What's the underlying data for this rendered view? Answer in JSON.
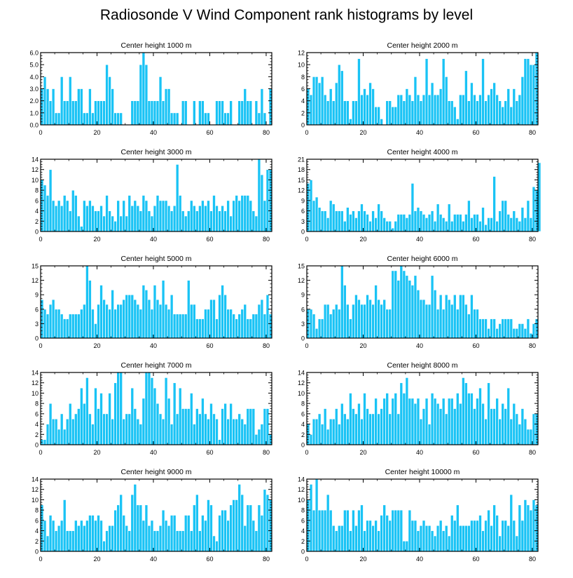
{
  "title": "Radiosonde V Wind Component rank histograms by level",
  "colors": {
    "bar": "#19c3f5",
    "bar_edge": "#ffffff",
    "axis": "#000000"
  },
  "chart_data": [
    {
      "type": "bar",
      "title": "Center height 1000 m",
      "ylim": [
        0,
        6
      ],
      "yticks": [
        "0.0",
        "1.0",
        "2.0",
        "3.0",
        "4.0",
        "5.0",
        "6.0"
      ],
      "xlim": [
        0,
        82
      ],
      "xticks": [
        0,
        20,
        40,
        60,
        80
      ],
      "values": [
        3,
        4,
        3,
        2,
        3,
        1,
        1,
        4,
        2,
        2,
        4,
        2,
        2,
        3,
        3,
        1,
        1,
        3,
        1,
        2,
        2,
        2,
        2,
        5,
        4,
        3,
        1,
        1,
        1,
        0,
        0,
        0,
        2,
        2,
        2,
        5,
        6,
        5,
        2,
        2,
        2,
        2,
        4,
        2,
        3,
        3,
        1,
        1,
        1,
        0,
        2,
        2,
        0,
        0,
        2,
        0,
        2,
        2,
        1,
        1,
        0,
        0,
        2,
        2,
        2,
        1,
        1,
        2,
        0,
        0,
        2,
        2,
        3,
        2,
        2,
        0,
        2,
        1,
        3,
        1,
        0,
        3
      ]
    },
    {
      "type": "bar",
      "title": "Center height 2000 m",
      "ylim": [
        0,
        12
      ],
      "yticks": [
        "0",
        "2",
        "4",
        "6",
        "8",
        "10",
        "12"
      ],
      "xlim": [
        0,
        82
      ],
      "xticks": [
        0,
        20,
        40,
        60,
        80
      ],
      "values": [
        6,
        5,
        8,
        8,
        7,
        8,
        5,
        4,
        6,
        4,
        7,
        10,
        9,
        4,
        4,
        1,
        4,
        4,
        11,
        5,
        6,
        5,
        7,
        6,
        3,
        3,
        1,
        0,
        4,
        4,
        3,
        3,
        5,
        5,
        4,
        6,
        5,
        4,
        8,
        5,
        4,
        5,
        11,
        5,
        7,
        5,
        5,
        6,
        11,
        8,
        4,
        4,
        3,
        1,
        5,
        5,
        9,
        4,
        7,
        5,
        4,
        5,
        11,
        4,
        5,
        6,
        7,
        5,
        4,
        3,
        4,
        6,
        3,
        6,
        4,
        5,
        8,
        11,
        11,
        10,
        10,
        12
      ]
    },
    {
      "type": "bar",
      "title": "Center height 3000 m",
      "ylim": [
        0,
        14
      ],
      "yticks": [
        "0",
        "2",
        "4",
        "6",
        "8",
        "10",
        "12",
        "14"
      ],
      "xlim": [
        0,
        82
      ],
      "xticks": [
        0,
        20,
        40,
        60,
        80
      ],
      "values": [
        10,
        9,
        7,
        12,
        6,
        5,
        6,
        5,
        7,
        6,
        4,
        8,
        7,
        3,
        1,
        6,
        5,
        6,
        5,
        4,
        4,
        5,
        3,
        7,
        4,
        3,
        2,
        6,
        3,
        6,
        3,
        7,
        5,
        6,
        5,
        4,
        7,
        6,
        4,
        3,
        5,
        7,
        6,
        6,
        6,
        5,
        4,
        5,
        13,
        7,
        4,
        3,
        4,
        6,
        5,
        4,
        5,
        6,
        5,
        6,
        4,
        7,
        5,
        4,
        5,
        4,
        6,
        3,
        6,
        7,
        6,
        7,
        7,
        7,
        6,
        4,
        3,
        14,
        11,
        6,
        12,
        12
      ]
    },
    {
      "type": "bar",
      "title": "Center height 4000 m",
      "ylim": [
        0,
        21
      ],
      "yticks": [
        "0",
        "3",
        "6",
        "9",
        "12",
        "15",
        "18",
        "21"
      ],
      "xlim": [
        0,
        82
      ],
      "xticks": [
        0,
        20,
        40,
        60,
        80
      ],
      "values": [
        14,
        15,
        9,
        10,
        7,
        6,
        6,
        4,
        9,
        8,
        6,
        6,
        6,
        3,
        7,
        5,
        6,
        4,
        6,
        8,
        6,
        5,
        3,
        6,
        4,
        8,
        6,
        4,
        3,
        3,
        1,
        3,
        5,
        5,
        5,
        4,
        5,
        14,
        6,
        7,
        6,
        5,
        4,
        5,
        6,
        3,
        8,
        5,
        4,
        3,
        8,
        3,
        5,
        5,
        5,
        3,
        5,
        9,
        4,
        5,
        5,
        3,
        7,
        2,
        4,
        4,
        16,
        3,
        6,
        9,
        9,
        5,
        4,
        6,
        4,
        3,
        7,
        4,
        9,
        4,
        13,
        12,
        20
      ]
    },
    {
      "type": "bar",
      "title": "Center height 5000 m",
      "ylim": [
        0,
        15
      ],
      "yticks": [
        "0",
        "3",
        "6",
        "9",
        "12",
        "15"
      ],
      "xlim": [
        0,
        82
      ],
      "xticks": [
        0,
        20,
        40,
        60,
        80
      ],
      "values": [
        8,
        6,
        5,
        7,
        8,
        6,
        6,
        5,
        4,
        4,
        5,
        5,
        5,
        5,
        6,
        7,
        15,
        12,
        6,
        3,
        7,
        11,
        8,
        7,
        6,
        10,
        6,
        7,
        7,
        8,
        9,
        9,
        9,
        8,
        7,
        6,
        11,
        10,
        8,
        6,
        11,
        8,
        7,
        12,
        7,
        6,
        9,
        5,
        5,
        5,
        5,
        5,
        12,
        7,
        7,
        4,
        4,
        4,
        6,
        6,
        8,
        8,
        4,
        9,
        11,
        9,
        6,
        6,
        5,
        4,
        5,
        6,
        7,
        4,
        4,
        5,
        5,
        7,
        8,
        5,
        9,
        5
      ]
    },
    {
      "type": "bar",
      "title": "Center height 6000 m",
      "ylim": [
        0,
        15
      ],
      "yticks": [
        "0",
        "3",
        "6",
        "9",
        "12",
        "15"
      ],
      "xlim": [
        0,
        82
      ],
      "xticks": [
        0,
        20,
        40,
        60,
        80
      ],
      "values": [
        6,
        6,
        5,
        2,
        4,
        4,
        7,
        7,
        5,
        6,
        7,
        6,
        15,
        11,
        7,
        4,
        7,
        9,
        8,
        7,
        7,
        9,
        8,
        7,
        11,
        8,
        7,
        8,
        6,
        6,
        14,
        14,
        12,
        15,
        14,
        13,
        12,
        11,
        13,
        10,
        8,
        8,
        7,
        7,
        13,
        10,
        6,
        9,
        6,
        9,
        8,
        7,
        9,
        6,
        9,
        9,
        7,
        5,
        9,
        6,
        6,
        4,
        4,
        4,
        2,
        4,
        4,
        2,
        3,
        4,
        4,
        4,
        4,
        2,
        2,
        3,
        3,
        2,
        4,
        1,
        3,
        4
      ]
    },
    {
      "type": "bar",
      "title": "Center height 7000 m",
      "ylim": [
        0,
        14
      ],
      "yticks": [
        "0",
        "2",
        "4",
        "6",
        "8",
        "10",
        "12",
        "14"
      ],
      "xlim": [
        0,
        82
      ],
      "xticks": [
        0,
        20,
        40,
        60,
        80
      ],
      "values": [
        1,
        1,
        4,
        8,
        5,
        5,
        3,
        6,
        3,
        5,
        8,
        5,
        6,
        7,
        11,
        8,
        13,
        6,
        4,
        11,
        7,
        10,
        6,
        6,
        10,
        5,
        12,
        14,
        14,
        5,
        6,
        6,
        11,
        7,
        5,
        4,
        9,
        14,
        14,
        13,
        11,
        8,
        6,
        5,
        13,
        9,
        4,
        12,
        6,
        11,
        7,
        7,
        7,
        10,
        4,
        7,
        6,
        9,
        6,
        5,
        8,
        6,
        5,
        1,
        7,
        8,
        5,
        8,
        5,
        5,
        6,
        5,
        4,
        7,
        7,
        7,
        2,
        3,
        4,
        7,
        7,
        2
      ]
    },
    {
      "type": "bar",
      "title": "Center height 8000 m",
      "ylim": [
        0,
        14
      ],
      "yticks": [
        "0",
        "2",
        "4",
        "6",
        "8",
        "10",
        "12",
        "14"
      ],
      "xlim": [
        0,
        82
      ],
      "xticks": [
        0,
        20,
        40,
        60,
        80
      ],
      "values": [
        4,
        2,
        5,
        5,
        6,
        4,
        7,
        3,
        5,
        5,
        7,
        4,
        8,
        6,
        5,
        10,
        7,
        6,
        8,
        5,
        10,
        7,
        6,
        6,
        9,
        6,
        7,
        9,
        10,
        6,
        9,
        10,
        6,
        12,
        10,
        13,
        9,
        9,
        8,
        9,
        5,
        7,
        9,
        4,
        10,
        9,
        8,
        7,
        9,
        6,
        9,
        9,
        7,
        10,
        8,
        13,
        12,
        10,
        10,
        7,
        9,
        11,
        8,
        5,
        12,
        7,
        7,
        9,
        5,
        8,
        7,
        11,
        5,
        8,
        6,
        4,
        7,
        5,
        3,
        3,
        6,
        6
      ]
    },
    {
      "type": "bar",
      "title": "Center height 9000 m",
      "ylim": [
        0,
        14
      ],
      "yticks": [
        "0",
        "2",
        "4",
        "6",
        "8",
        "10",
        "12",
        "14"
      ],
      "xlim": [
        0,
        82
      ],
      "xticks": [
        0,
        20,
        40,
        60,
        80
      ],
      "values": [
        9,
        6,
        3,
        7,
        6,
        4,
        5,
        6,
        10,
        4,
        4,
        4,
        6,
        5,
        6,
        5,
        6,
        7,
        7,
        6,
        7,
        6,
        2,
        4,
        5,
        5,
        8,
        9,
        11,
        7,
        5,
        4,
        11,
        13,
        9,
        9,
        6,
        9,
        5,
        6,
        4,
        4,
        5,
        8,
        6,
        5,
        7,
        7,
        4,
        4,
        4,
        7,
        7,
        4,
        9,
        11,
        4,
        7,
        6,
        10,
        9,
        3,
        2,
        7,
        8,
        8,
        6,
        9,
        10,
        10,
        13,
        11,
        5,
        9,
        9,
        6,
        4,
        9,
        7,
        12,
        11,
        10
      ]
    },
    {
      "type": "bar",
      "title": "Center height 10000 m",
      "ylim": [
        0,
        14
      ],
      "yticks": [
        "0",
        "2",
        "4",
        "6",
        "8",
        "10",
        "12",
        "14"
      ],
      "xlim": [
        0,
        82
      ],
      "xticks": [
        0,
        20,
        40,
        60,
        80
      ],
      "values": [
        10,
        13,
        8,
        14,
        8,
        8,
        8,
        11,
        8,
        5,
        4,
        5,
        5,
        8,
        8,
        4,
        8,
        5,
        8,
        9,
        4,
        6,
        6,
        5,
        6,
        4,
        7,
        9,
        7,
        6,
        8,
        8,
        8,
        8,
        2,
        2,
        8,
        6,
        6,
        4,
        5,
        6,
        5,
        5,
        4,
        3,
        5,
        6,
        4,
        5,
        3,
        7,
        6,
        9,
        5,
        5,
        5,
        5,
        6,
        6,
        6,
        7,
        4,
        6,
        8,
        5,
        9,
        7,
        3,
        6,
        6,
        5,
        11,
        6,
        3,
        9,
        6,
        10,
        9,
        8,
        10,
        9
      ]
    }
  ]
}
